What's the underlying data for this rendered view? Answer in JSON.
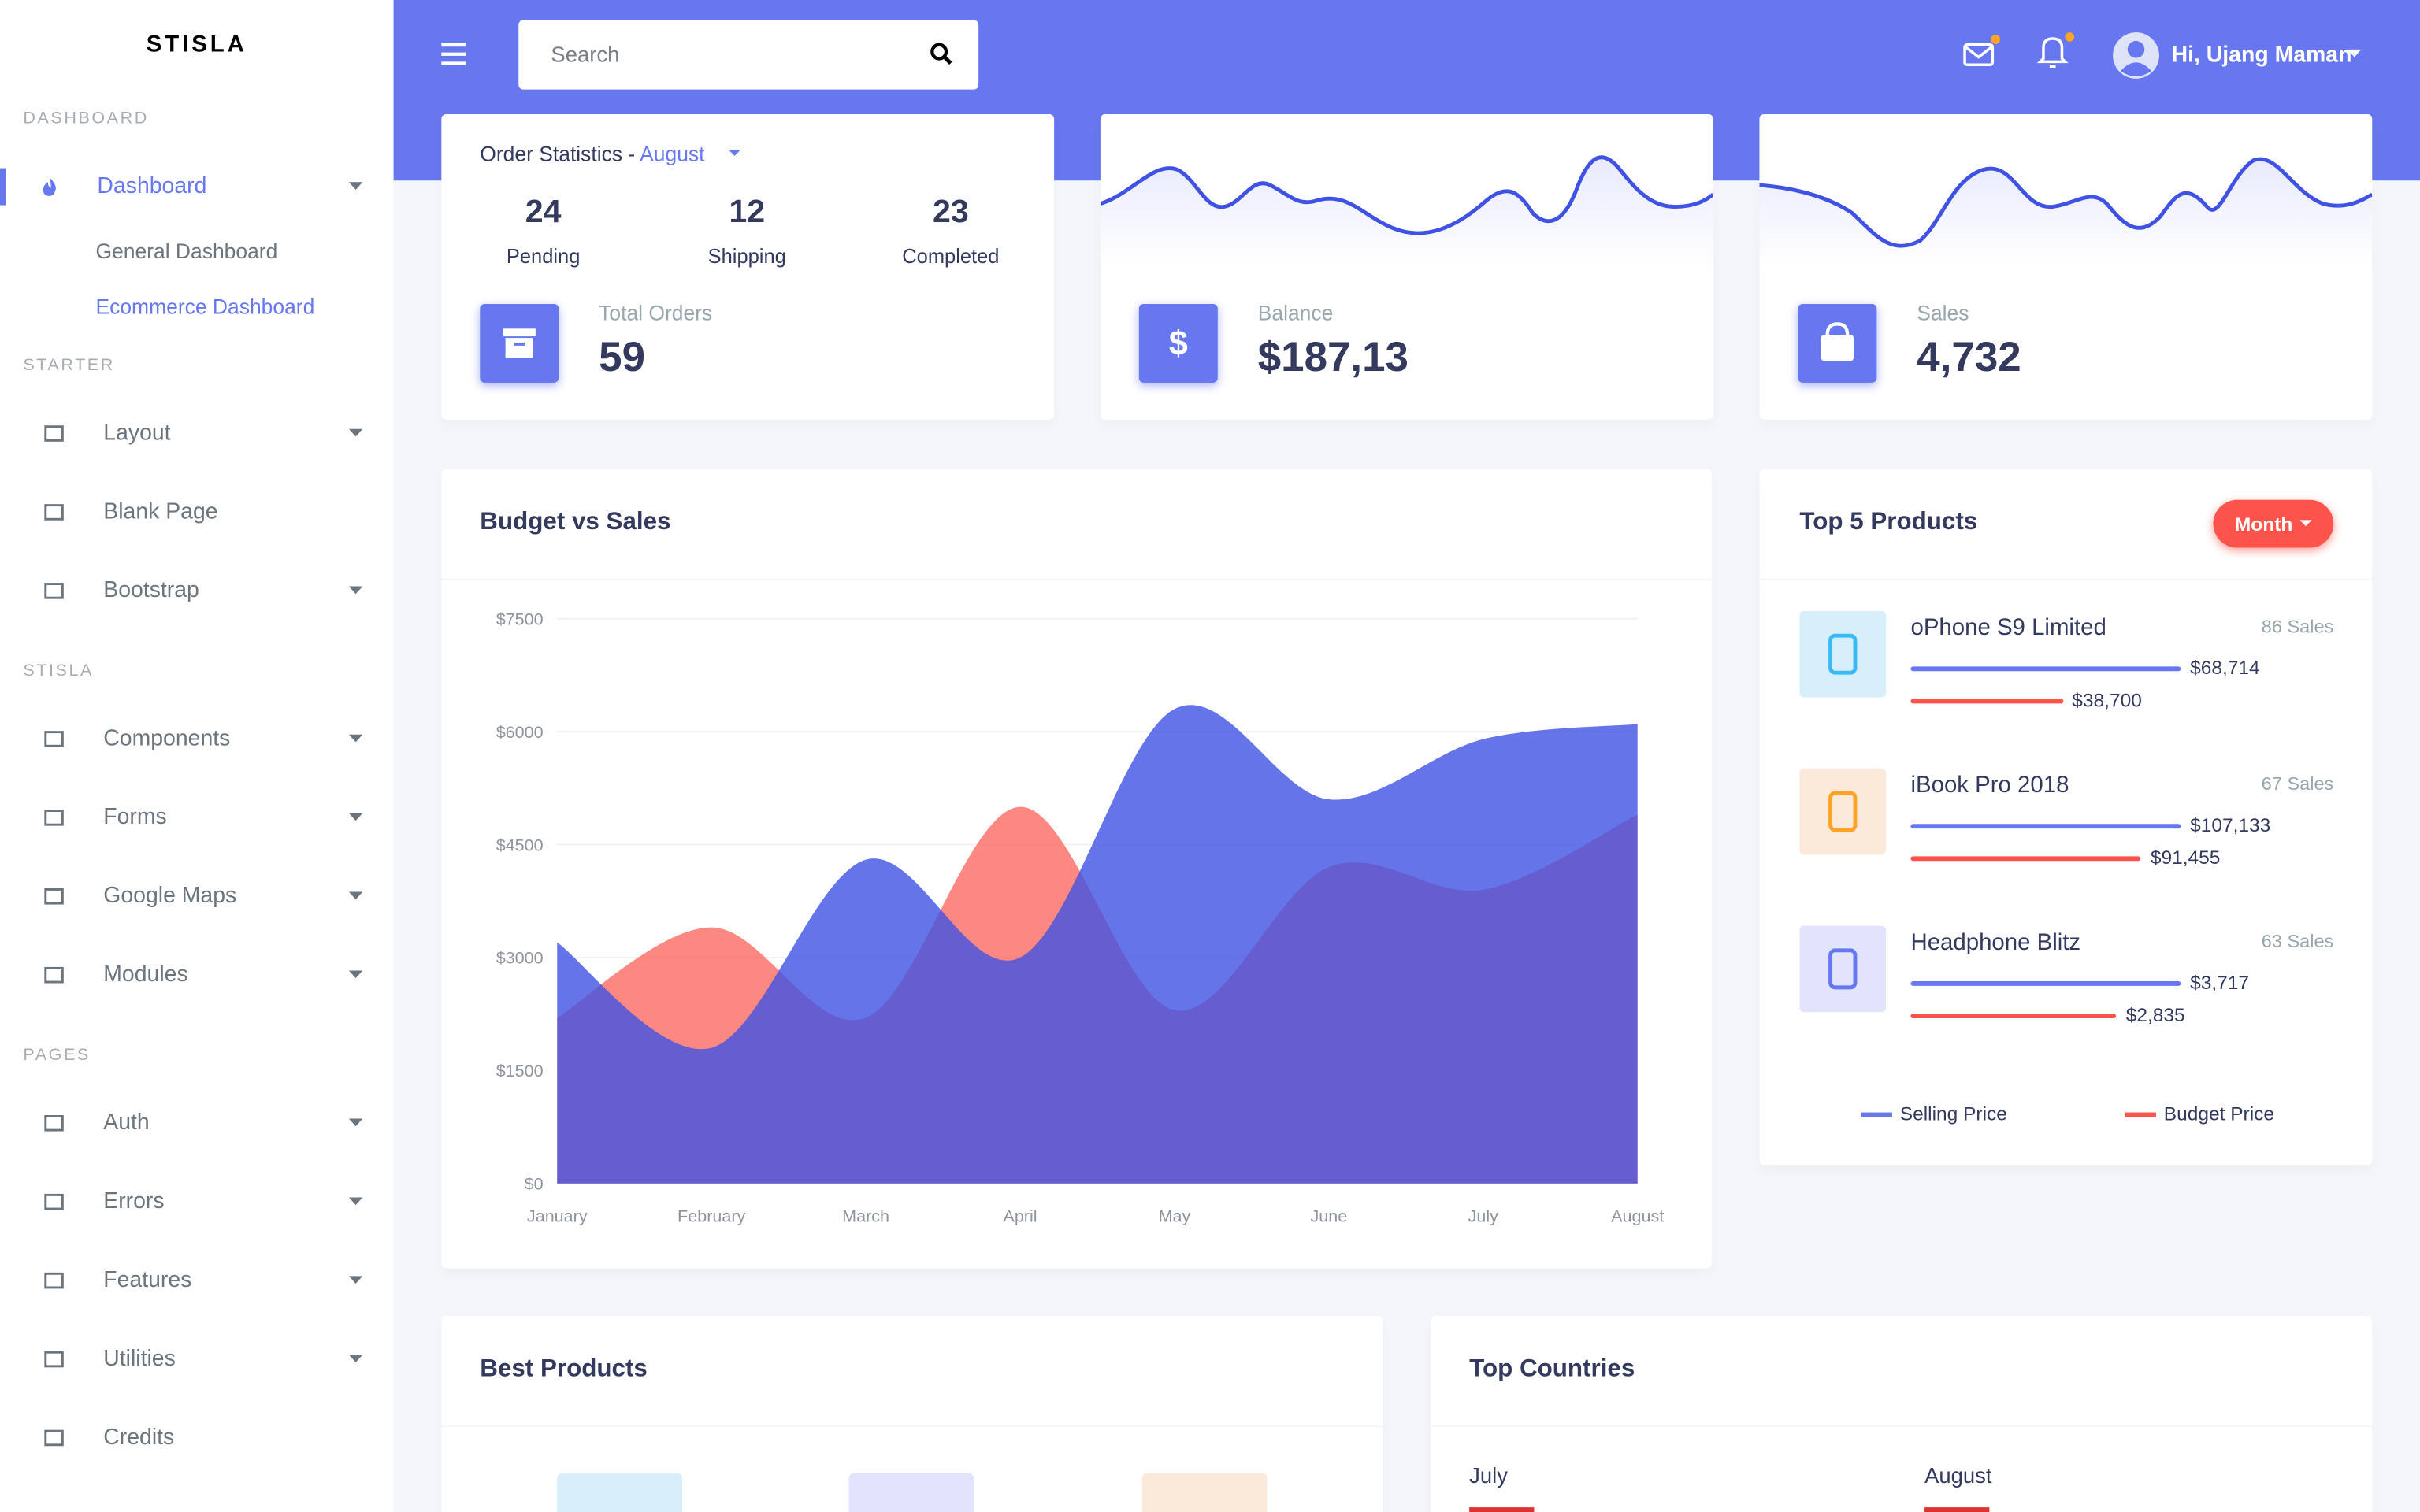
{
  "sidebar": {
    "brand": "STISLA",
    "sections": [
      {
        "title": "DASHBOARD",
        "items": [
          {
            "label": "Dashboard",
            "children": [
              "General Dashboard",
              "Ecommerce Dashboard"
            ]
          }
        ]
      },
      {
        "title": "STARTER",
        "items": [
          {
            "label": "Layout"
          },
          {
            "label": "Blank Page"
          },
          {
            "label": "Bootstrap"
          }
        ]
      },
      {
        "title": "STISLA",
        "items": [
          {
            "label": "Components"
          },
          {
            "label": "Forms"
          },
          {
            "label": "Google Maps"
          },
          {
            "label": "Modules"
          }
        ]
      },
      {
        "title": "PAGES",
        "items": [
          {
            "label": "Auth"
          },
          {
            "label": "Errors"
          },
          {
            "label": "Features"
          },
          {
            "label": "Utilities"
          },
          {
            "label": "Credits"
          }
        ]
      }
    ]
  },
  "header": {
    "search_placeholder": "Search",
    "user": "Hi, Ujang Maman"
  },
  "order_statistics": {
    "title": "Order Statistics - ",
    "month": "August",
    "stats": [
      {
        "value": 24,
        "label": "Pending"
      },
      {
        "value": 12,
        "label": "Shipping"
      },
      {
        "value": 23,
        "label": "Completed"
      }
    ],
    "total_label": "Total Orders",
    "total": 59
  },
  "balance": {
    "label": "Balance",
    "value": "$187,13"
  },
  "sales": {
    "label": "Sales",
    "value": "4,732"
  },
  "budget_chart": {
    "type": "area",
    "title": "Budget vs Sales",
    "categories": [
      "January",
      "February",
      "March",
      "April",
      "May",
      "June",
      "July",
      "August"
    ],
    "series": [
      {
        "color": "#fc544b",
        "values": [
          2200,
          3400,
          2200,
          5000,
          2300,
          4200,
          3900,
          4900
        ]
      },
      {
        "color": "#3f52e3",
        "values": [
          3200,
          1800,
          4300,
          3000,
          6300,
          5100,
          5900,
          6100
        ]
      }
    ],
    "ylim": [
      0,
      7500
    ],
    "yticks": [
      {
        "value": 0,
        "label": "$0"
      },
      {
        "value": 1500,
        "label": "$1500"
      },
      {
        "value": 3000,
        "label": "$3000"
      },
      {
        "value": 4500,
        "label": "$4500"
      },
      {
        "value": 6000,
        "label": "$6000"
      },
      {
        "value": 7500,
        "label": "$7500"
      }
    ]
  },
  "top_products": {
    "title": "Top 5 Products",
    "button": "Month",
    "items": [
      {
        "name": "oPhone S9 Limited",
        "sales": "86 Sales",
        "selling": {
          "value": 68714,
          "label": "$68,714"
        },
        "budget": {
          "value": 38700,
          "label": "$38,700"
        }
      },
      {
        "name": "iBook Pro 2018",
        "sales": "67 Sales",
        "selling": {
          "value": 107133,
          "label": "$107,133"
        },
        "budget": {
          "value": 91455,
          "label": "$91,455"
        }
      },
      {
        "name": "Headphone Blitz",
        "sales": "63 Sales",
        "selling": {
          "value": 3717,
          "label": "$3,717"
        },
        "budget": {
          "value": 2835,
          "label": "$2,835"
        }
      }
    ],
    "legend": [
      {
        "name": "Selling Price",
        "color": "#6777ef"
      },
      {
        "name": "Budget Price",
        "color": "#fc544b"
      }
    ]
  },
  "best_products": {
    "title": "Best Products"
  },
  "top_countries": {
    "title": "Top Countries",
    "columns": [
      "July",
      "August"
    ]
  }
}
